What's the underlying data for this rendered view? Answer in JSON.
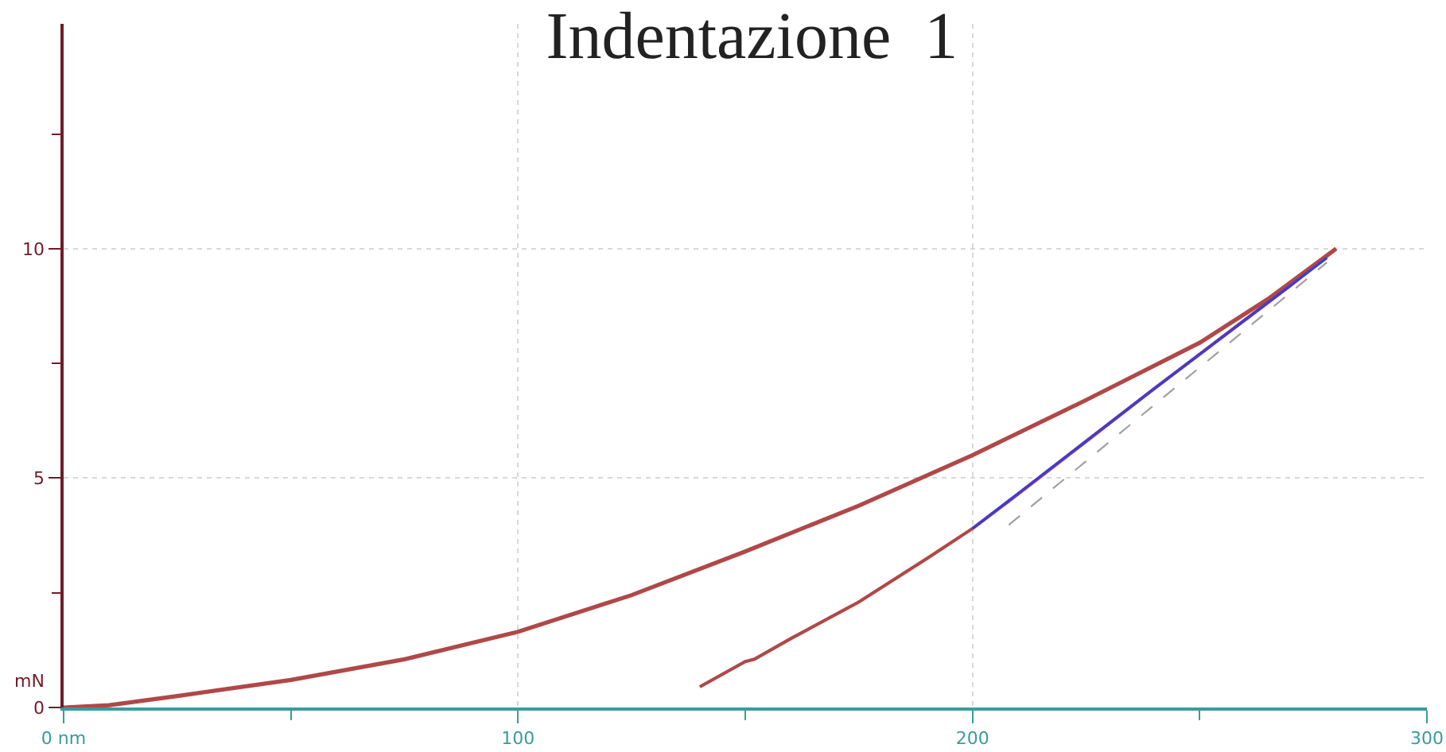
{
  "chart_data": {
    "type": "line",
    "title": "Indentazione  1",
    "ylabel": "mN",
    "xlim": [
      0,
      300
    ],
    "ylim": [
      0,
      14.9
    ],
    "xticks": [
      {
        "value": 0,
        "label": "0 nm"
      },
      {
        "value": 50,
        "label": null
      },
      100,
      {
        "value": 150,
        "label": null
      },
      200,
      {
        "value": 250,
        "label": null
      },
      300
    ],
    "yticks": [
      0,
      {
        "value": 2.5,
        "label": null
      },
      5,
      {
        "value": 7.5,
        "label": null
      },
      10,
      {
        "value": 12.5,
        "label": null
      }
    ],
    "grid": true,
    "marker": "none",
    "series": [
      {
        "color": "#b04848",
        "x": [
          0,
          10,
          25,
          50,
          75,
          100,
          125,
          150,
          175,
          200,
          225,
          250,
          265,
          280
        ],
        "values": [
          0,
          0.05,
          0.25,
          0.6,
          1.05,
          1.65,
          2.45,
          3.4,
          4.4,
          5.5,
          6.7,
          7.95,
          8.9,
          10
        ]
      },
      {
        "color": "#b04848",
        "x": [
          280,
          270,
          260,
          250,
          240,
          225,
          210,
          200,
          190,
          175,
          160,
          152,
          150,
          140
        ],
        "values": [
          10,
          9.2,
          8.45,
          7.7,
          6.95,
          5.8,
          4.65,
          3.9,
          3.25,
          2.3,
          1.5,
          1.05,
          1.0,
          0.45
        ]
      },
      {
        "color": "#3c3cd8",
        "x": [
          200,
          240,
          278
        ],
        "values": [
          3.9,
          6.95,
          9.8
        ]
      },
      {
        "color": "#a0a0a0",
        "line_style": "dashed",
        "x": [
          208,
          278
        ],
        "values": [
          3.98,
          9.7
        ]
      }
    ]
  }
}
